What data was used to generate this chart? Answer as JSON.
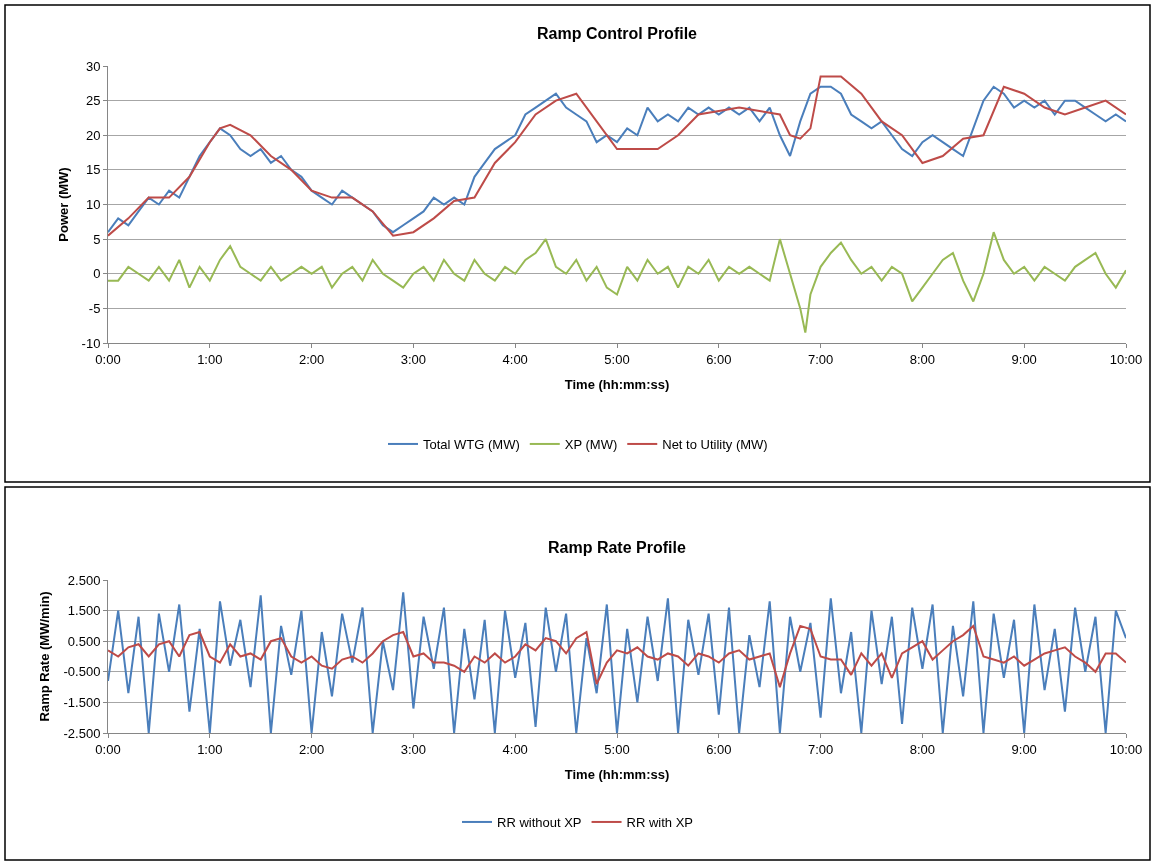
{
  "chart_data": [
    {
      "type": "line",
      "title": "Ramp Control Profile",
      "xlabel": "Time (hh:mm:ss)",
      "ylabel": "Power (MW)",
      "grid": "y",
      "legend": "bottom",
      "marker": "none",
      "line_style": "solid",
      "xlim": [
        0,
        10
      ],
      "xticks": [
        {
          "value": 0,
          "label": "0:00"
        },
        {
          "value": 1,
          "label": "1:00"
        },
        {
          "value": 2,
          "label": "2:00"
        },
        {
          "value": 3,
          "label": "3:00"
        },
        {
          "value": 4,
          "label": "4:00"
        },
        {
          "value": 5,
          "label": "5:00"
        },
        {
          "value": 6,
          "label": "6:00"
        },
        {
          "value": 7,
          "label": "7:00"
        },
        {
          "value": 8,
          "label": "8:00"
        },
        {
          "value": 9,
          "label": "9:00"
        },
        {
          "value": 10,
          "label": "10:00"
        }
      ],
      "ylim": [
        -10,
        30
      ],
      "yticks": [
        -10,
        -5,
        0,
        5,
        10,
        15,
        20,
        25,
        30
      ],
      "series": [
        {
          "name": "Total WTG (MW)",
          "color": "#4a7ebb",
          "x": [
            0,
            0.1,
            0.2,
            0.3,
            0.4,
            0.5,
            0.6,
            0.7,
            0.8,
            0.9,
            1,
            1.1,
            1.2,
            1.3,
            1.4,
            1.5,
            1.6,
            1.7,
            1.8,
            1.9,
            2,
            2.1,
            2.2,
            2.3,
            2.4,
            2.5,
            2.6,
            2.7,
            2.8,
            2.9,
            3,
            3.1,
            3.2,
            3.3,
            3.4,
            3.5,
            3.6,
            3.7,
            3.8,
            3.9,
            4,
            4.1,
            4.2,
            4.3,
            4.4,
            4.5,
            4.6,
            4.7,
            4.8,
            4.9,
            5,
            5.1,
            5.2,
            5.3,
            5.4,
            5.5,
            5.6,
            5.7,
            5.8,
            5.9,
            6,
            6.1,
            6.2,
            6.3,
            6.4,
            6.5,
            6.6,
            6.7,
            6.8,
            6.9,
            7,
            7.1,
            7.2,
            7.3,
            7.4,
            7.5,
            7.6,
            7.7,
            7.8,
            7.9,
            8,
            8.1,
            8.2,
            8.3,
            8.4,
            8.5,
            8.6,
            8.7,
            8.8,
            8.9,
            9,
            9.1,
            9.2,
            9.3,
            9.4,
            9.5,
            9.6,
            9.7,
            9.8,
            9.9,
            10
          ],
          "values": [
            6,
            8,
            7,
            9,
            11,
            10,
            12,
            11,
            14,
            17,
            19,
            21,
            20,
            18,
            17,
            18,
            16,
            17,
            15,
            14,
            12,
            11,
            10,
            12,
            11,
            10,
            9,
            7,
            6,
            7,
            8,
            9,
            11,
            10,
            11,
            10,
            14,
            16,
            18,
            19,
            20,
            23,
            24,
            25,
            26,
            24,
            23,
            22,
            19,
            20,
            19,
            21,
            20,
            24,
            22,
            23,
            22,
            24,
            23,
            24,
            23,
            24,
            23,
            24,
            22,
            24,
            20,
            17,
            22,
            26,
            27,
            27,
            26,
            23,
            22,
            21,
            22,
            20,
            18,
            17,
            19,
            20,
            19,
            18,
            17,
            21,
            25,
            27,
            26,
            24,
            25,
            24,
            25,
            23,
            25,
            25,
            24,
            23,
            22,
            23,
            22
          ]
        },
        {
          "name": "XP (MW)",
          "color": "#98b954",
          "x": [
            0,
            0.1,
            0.2,
            0.3,
            0.4,
            0.5,
            0.6,
            0.7,
            0.8,
            0.9,
            1,
            1.1,
            1.2,
            1.3,
            1.4,
            1.5,
            1.6,
            1.7,
            1.8,
            1.9,
            2,
            2.1,
            2.2,
            2.3,
            2.4,
            2.5,
            2.6,
            2.7,
            2.8,
            2.9,
            3,
            3.1,
            3.2,
            3.3,
            3.4,
            3.5,
            3.6,
            3.7,
            3.8,
            3.9,
            4,
            4.1,
            4.2,
            4.3,
            4.4,
            4.5,
            4.6,
            4.7,
            4.8,
            4.9,
            5,
            5.1,
            5.2,
            5.3,
            5.4,
            5.5,
            5.6,
            5.7,
            5.8,
            5.9,
            6,
            6.1,
            6.2,
            6.3,
            6.4,
            6.5,
            6.6,
            6.7,
            6.8,
            6.85,
            6.9,
            7,
            7.1,
            7.2,
            7.3,
            7.4,
            7.5,
            7.6,
            7.7,
            7.8,
            7.9,
            8,
            8.1,
            8.2,
            8.3,
            8.4,
            8.5,
            8.6,
            8.7,
            8.8,
            8.9,
            9,
            9.1,
            9.2,
            9.3,
            9.4,
            9.5,
            9.6,
            9.7,
            9.8,
            9.9,
            10
          ],
          "values": [
            -1,
            -1,
            1,
            0,
            -1,
            1,
            -1,
            2,
            -2,
            1,
            -1,
            2,
            4,
            1,
            0,
            -1,
            1,
            -1,
            0,
            1,
            0,
            1,
            -2,
            0,
            1,
            -1,
            2,
            0,
            -1,
            -2,
            0,
            1,
            -1,
            2,
            0,
            -1,
            2,
            0,
            -1,
            1,
            0,
            2,
            3,
            5,
            1,
            0,
            2,
            -1,
            1,
            -2,
            -3,
            1,
            -1,
            2,
            0,
            1,
            -2,
            1,
            0,
            2,
            -1,
            1,
            0,
            1,
            0,
            -1,
            5,
            0,
            -5,
            -8.5,
            -3,
            1,
            3,
            4.5,
            2,
            0,
            1,
            -1,
            1,
            0,
            -4,
            -2,
            0,
            2,
            3,
            -1,
            -4,
            0,
            6,
            2,
            0,
            1,
            -1,
            1,
            0,
            -1,
            1,
            2,
            3,
            0,
            -2,
            0.5
          ]
        },
        {
          "name": "Net to Utility (MW)",
          "color": "#be4b48",
          "x": [
            0,
            0.2,
            0.4,
            0.6,
            0.8,
            1,
            1.1,
            1.2,
            1.4,
            1.6,
            1.8,
            2,
            2.2,
            2.4,
            2.6,
            2.8,
            3,
            3.2,
            3.4,
            3.6,
            3.8,
            4,
            4.2,
            4.4,
            4.6,
            4.8,
            5,
            5.2,
            5.4,
            5.6,
            5.8,
            6,
            6.2,
            6.4,
            6.6,
            6.7,
            6.8,
            6.9,
            7,
            7.2,
            7.4,
            7.6,
            7.8,
            8,
            8.2,
            8.4,
            8.6,
            8.8,
            9,
            9.2,
            9.4,
            9.6,
            9.8,
            10
          ],
          "values": [
            5.5,
            8,
            11,
            11,
            14,
            19,
            21,
            21.5,
            20,
            17,
            15,
            12,
            11,
            11,
            9,
            5.5,
            6,
            8,
            10.5,
            11,
            16,
            19,
            23,
            25,
            26,
            22,
            18,
            18,
            18,
            20,
            23,
            23.5,
            24,
            23.5,
            23,
            20,
            19.5,
            21,
            28.5,
            28.5,
            26,
            22,
            20,
            16,
            17,
            19.5,
            20,
            27,
            26,
            24,
            23,
            24,
            25,
            23
          ]
        }
      ]
    },
    {
      "type": "line",
      "title": "Ramp Rate Profile",
      "xlabel": "Time (hh:mm:ss)",
      "ylabel": "Ramp Rate (MW/min)",
      "grid": "y",
      "legend": "bottom",
      "marker": "none",
      "line_style": "solid",
      "xlim": [
        0,
        10
      ],
      "xticks": [
        {
          "value": 0,
          "label": "0:00"
        },
        {
          "value": 1,
          "label": "1:00"
        },
        {
          "value": 2,
          "label": "2:00"
        },
        {
          "value": 3,
          "label": "3:00"
        },
        {
          "value": 4,
          "label": "4:00"
        },
        {
          "value": 5,
          "label": "5:00"
        },
        {
          "value": 6,
          "label": "6:00"
        },
        {
          "value": 7,
          "label": "7:00"
        },
        {
          "value": 8,
          "label": "8:00"
        },
        {
          "value": 9,
          "label": "9:00"
        },
        {
          "value": 10,
          "label": "10:00"
        }
      ],
      "ylim": [
        -2.5,
        2.5
      ],
      "yticks": [
        {
          "value": -2.5,
          "label": "-2.500"
        },
        {
          "value": -1.5,
          "label": "-1.500"
        },
        {
          "value": -0.5,
          "label": "-0.500"
        },
        {
          "value": 0.5,
          "label": "0.500"
        },
        {
          "value": 1.5,
          "label": "1.500"
        },
        {
          "value": 2.5,
          "label": "2.500"
        }
      ],
      "x": [
        0,
        0.1,
        0.2,
        0.3,
        0.4,
        0.5,
        0.6,
        0.7,
        0.8,
        0.9,
        1,
        1.1,
        1.2,
        1.3,
        1.4,
        1.5,
        1.6,
        1.7,
        1.8,
        1.9,
        2,
        2.1,
        2.2,
        2.3,
        2.4,
        2.5,
        2.6,
        2.7,
        2.8,
        2.9,
        3,
        3.1,
        3.2,
        3.3,
        3.4,
        3.5,
        3.6,
        3.7,
        3.8,
        3.9,
        4,
        4.1,
        4.2,
        4.3,
        4.4,
        4.5,
        4.6,
        4.7,
        4.8,
        4.9,
        5,
        5.1,
        5.2,
        5.3,
        5.4,
        5.5,
        5.6,
        5.7,
        5.8,
        5.9,
        6,
        6.1,
        6.2,
        6.3,
        6.4,
        6.5,
        6.6,
        6.7,
        6.8,
        6.9,
        7,
        7.1,
        7.2,
        7.3,
        7.4,
        7.5,
        7.6,
        7.7,
        7.8,
        7.9,
        8,
        8.1,
        8.2,
        8.3,
        8.4,
        8.5,
        8.6,
        8.7,
        8.8,
        8.9,
        9,
        9.1,
        9.2,
        9.3,
        9.4,
        9.5,
        9.6,
        9.7,
        9.8,
        9.9,
        10
      ],
      "series": [
        {
          "name": "RR without XP",
          "color": "#4a7ebb",
          "values": [
            -0.8,
            1.5,
            -1.2,
            1.3,
            -2.5,
            1.4,
            -0.5,
            1.7,
            -1.8,
            0.9,
            -2.5,
            1.8,
            -0.3,
            1.2,
            -1.0,
            2.0,
            -2.5,
            1.0,
            -0.6,
            1.5,
            -2.5,
            0.8,
            -1.3,
            1.4,
            -0.2,
            1.6,
            -2.5,
            0.5,
            -1.1,
            2.1,
            -1.7,
            1.3,
            -0.4,
            1.6,
            -2.5,
            0.9,
            -1.4,
            1.2,
            -2.5,
            1.5,
            -0.7,
            1.1,
            -2.3,
            1.6,
            -0.5,
            1.4,
            -2.5,
            0.6,
            -1.2,
            1.7,
            -2.5,
            0.9,
            -1.5,
            1.3,
            -0.8,
            1.9,
            -2.5,
            1.2,
            -0.6,
            1.4,
            -1.9,
            1.6,
            -2.5,
            0.7,
            -1.0,
            1.8,
            -2.5,
            1.3,
            -0.5,
            1.1,
            -2.0,
            1.9,
            -1.2,
            0.8,
            -2.5,
            1.5,
            -0.9,
            1.3,
            -2.2,
            1.6,
            -0.4,
            1.7,
            -2.5,
            1.0,
            -1.3,
            1.8,
            -2.5,
            1.4,
            -0.7,
            1.2,
            -2.5,
            1.7,
            -1.1,
            0.9,
            -1.8,
            1.6,
            -0.5,
            1.3,
            -2.5,
            1.5,
            0.6
          ]
        },
        {
          "name": "RR with XP",
          "color": "#be4b48",
          "values": [
            0.2,
            0,
            0.3,
            0.4,
            0,
            0.4,
            0.5,
            0,
            0.7,
            0.8,
            0,
            -0.2,
            0.4,
            0,
            0.1,
            -0.1,
            0.5,
            0.6,
            0,
            -0.2,
            0,
            -0.3,
            -0.4,
            -0.1,
            0,
            -0.2,
            0.1,
            0.5,
            0.7,
            0.8,
            0,
            0.1,
            -0.2,
            -0.2,
            -0.3,
            -0.5,
            0,
            -0.2,
            0.1,
            -0.2,
            0,
            0.4,
            0.2,
            0.6,
            0.5,
            0.1,
            0.6,
            0.8,
            -0.9,
            -0.2,
            0.2,
            0.1,
            0.3,
            0,
            -0.1,
            0.1,
            0,
            -0.3,
            0.1,
            0,
            -0.2,
            0.1,
            0.2,
            -0.1,
            0,
            0.1,
            -1.0,
            0.1,
            1.0,
            0.9,
            0,
            -0.1,
            -0.1,
            -0.6,
            0.1,
            -0.3,
            0.1,
            -0.7,
            0.1,
            0.3,
            0.5,
            -0.1,
            0.2,
            0.5,
            0.7,
            1.0,
            0,
            -0.1,
            -0.2,
            0,
            -0.3,
            -0.1,
            0.1,
            0.2,
            0.3,
            0,
            -0.2,
            -0.5,
            0.1,
            0.1,
            -0.2
          ]
        }
      ]
    }
  ]
}
